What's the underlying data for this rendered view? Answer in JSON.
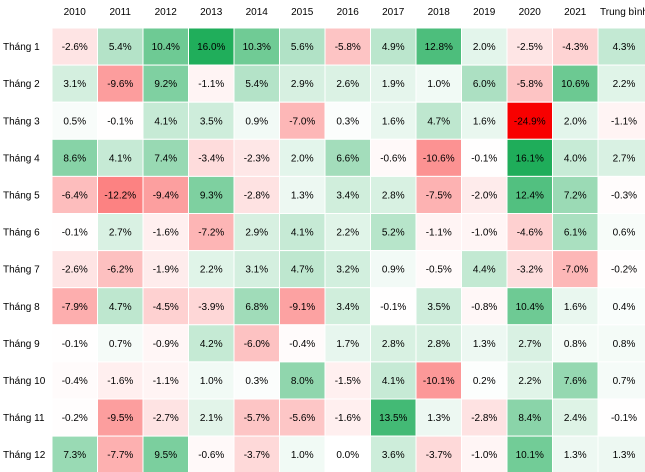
{
  "chart_data": {
    "type": "heatmap",
    "columns": [
      "2010",
      "2011",
      "2012",
      "2013",
      "2014",
      "2015",
      "2016",
      "2017",
      "2018",
      "2019",
      "2020",
      "2021",
      "Trung bình"
    ],
    "rows": [
      "Tháng 1",
      "Tháng 2",
      "Tháng 3",
      "Tháng 4",
      "Tháng 5",
      "Tháng 6",
      "Tháng 7",
      "Tháng 8",
      "Tháng 9",
      "Tháng 10",
      "Tháng 11",
      "Tháng 12"
    ],
    "values": [
      [
        -2.6,
        5.4,
        10.4,
        16.0,
        10.3,
        5.6,
        -5.8,
        4.9,
        12.8,
        2.0,
        -2.5,
        -4.3,
        4.3
      ],
      [
        3.1,
        -9.6,
        9.2,
        -1.1,
        5.4,
        2.9,
        2.6,
        1.9,
        1.0,
        6.0,
        -5.8,
        10.6,
        2.2
      ],
      [
        0.5,
        -0.1,
        4.1,
        3.5,
        0.9,
        -7.0,
        0.3,
        1.6,
        4.7,
        1.6,
        -24.9,
        2.0,
        -1.1
      ],
      [
        8.6,
        4.1,
        7.4,
        -3.4,
        -2.3,
        2.0,
        6.6,
        -0.6,
        -10.6,
        -0.1,
        16.1,
        4.0,
        2.7
      ],
      [
        -6.4,
        -12.2,
        -9.4,
        9.3,
        -2.8,
        1.3,
        3.4,
        2.8,
        -7.5,
        -2.0,
        12.4,
        7.2,
        -0.3
      ],
      [
        -0.1,
        2.7,
        -1.6,
        -7.2,
        2.9,
        4.1,
        2.2,
        5.2,
        -1.1,
        -1.0,
        -4.6,
        6.1,
        0.6
      ],
      [
        -2.6,
        -6.2,
        -1.9,
        2.2,
        3.1,
        4.7,
        3.2,
        0.9,
        -0.5,
        4.4,
        -3.2,
        -7.0,
        -0.2
      ],
      [
        -7.9,
        4.7,
        -4.5,
        -3.9,
        6.8,
        -9.1,
        3.4,
        -0.1,
        3.5,
        -0.8,
        10.4,
        1.6,
        0.4
      ],
      [
        -0.1,
        0.7,
        -0.9,
        4.2,
        -6.0,
        -0.4,
        1.7,
        2.8,
        2.8,
        1.3,
        2.7,
        0.8,
        0.8
      ],
      [
        -0.4,
        -1.6,
        -1.1,
        1.0,
        0.3,
        8.0,
        -1.5,
        4.1,
        -10.1,
        0.2,
        2.2,
        7.6,
        0.7
      ],
      [
        -0.2,
        -9.5,
        -2.7,
        2.1,
        -5.7,
        -5.6,
        -1.6,
        13.5,
        1.3,
        -2.8,
        8.4,
        2.4,
        -0.1
      ],
      [
        7.3,
        -7.7,
        9.5,
        -0.6,
        -3.7,
        1.0,
        0.0,
        3.6,
        -3.7,
        -1.0,
        10.1,
        1.3,
        1.3
      ]
    ],
    "value_suffix": "%",
    "colors": {
      "positive_max": "#1fad5a",
      "negative_max": "#f80000",
      "neutral": "#ffffff"
    },
    "color_scale": {
      "positive_full_at": 16.1,
      "negative_full_at": -24.9
    }
  }
}
